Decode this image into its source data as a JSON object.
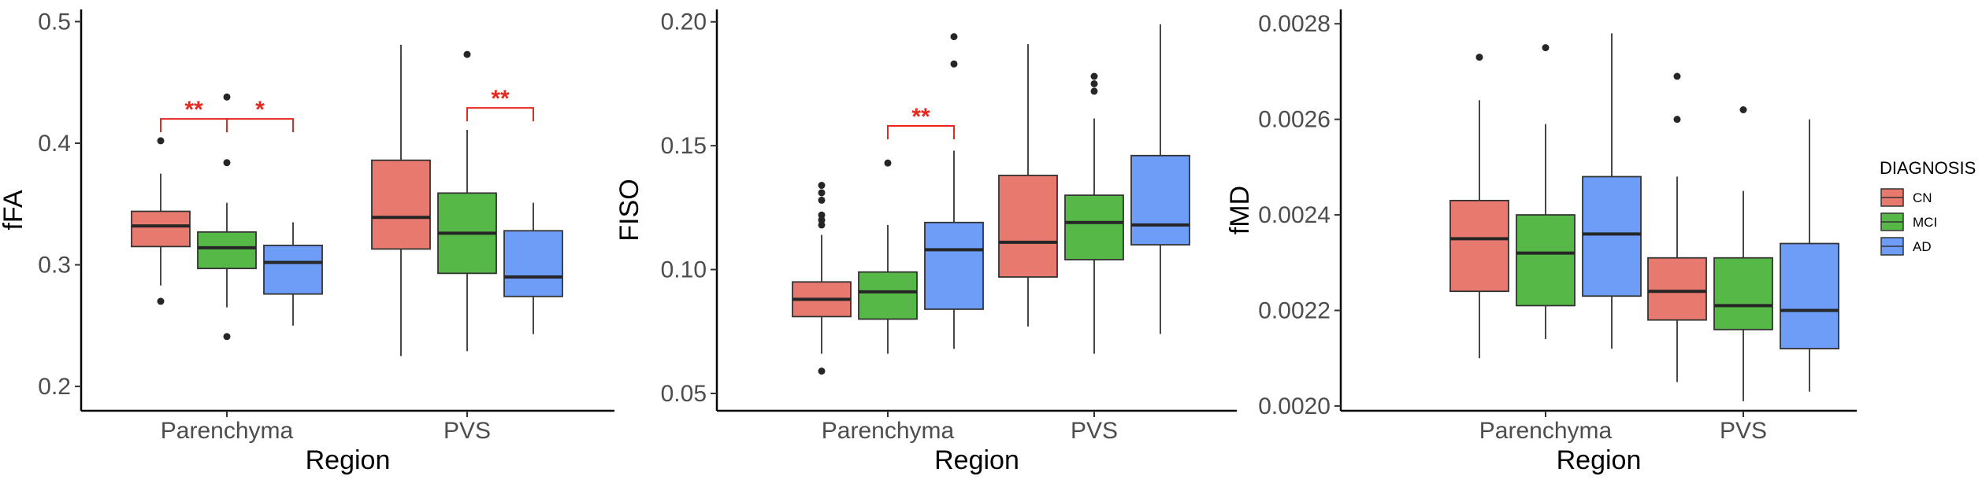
{
  "legend": {
    "title": "DIAGNOSIS",
    "items": [
      {
        "label": "CN",
        "color": "#E8796F"
      },
      {
        "label": "MCI",
        "color": "#56B947"
      },
      {
        "label": "AD",
        "color": "#6E9DF8"
      }
    ]
  },
  "significance_color": "#E8281E",
  "chart_data": [
    {
      "type": "boxplot",
      "xlabel": "Region",
      "ylabel": "fFA",
      "categories": [
        "Parenchyma",
        "PVS"
      ],
      "groups": [
        "CN",
        "MCI",
        "AD"
      ],
      "ylim": [
        0.18,
        0.51
      ],
      "yticks": [
        0.2,
        0.3,
        0.4,
        0.5
      ],
      "ytick_labels": [
        "0.2",
        "0.3",
        "0.4",
        "0.5"
      ],
      "boxes": [
        {
          "category": "Parenchyma",
          "group": "CN",
          "min": 0.283,
          "q1": 0.315,
          "median": 0.332,
          "q3": 0.344,
          "max": 0.375,
          "outliers": [
            0.402,
            0.27
          ]
        },
        {
          "category": "Parenchyma",
          "group": "MCI",
          "min": 0.265,
          "q1": 0.297,
          "median": 0.314,
          "q3": 0.327,
          "max": 0.351,
          "outliers": [
            0.438,
            0.384,
            0.241
          ]
        },
        {
          "category": "Parenchyma",
          "group": "AD",
          "min": 0.25,
          "q1": 0.276,
          "median": 0.302,
          "q3": 0.316,
          "max": 0.335,
          "outliers": []
        },
        {
          "category": "PVS",
          "group": "CN",
          "min": 0.225,
          "q1": 0.313,
          "median": 0.339,
          "q3": 0.386,
          "max": 0.481,
          "outliers": []
        },
        {
          "category": "PVS",
          "group": "MCI",
          "min": 0.229,
          "q1": 0.293,
          "median": 0.326,
          "q3": 0.359,
          "max": 0.411,
          "outliers": [
            0.473
          ]
        },
        {
          "category": "PVS",
          "group": "AD",
          "min": 0.243,
          "q1": 0.274,
          "median": 0.29,
          "q3": 0.328,
          "max": 0.351,
          "outliers": []
        }
      ],
      "significance": [
        {
          "category": "Parenchyma",
          "from": "CN",
          "to": "MCI",
          "label": "**",
          "y": 0.42
        },
        {
          "category": "Parenchyma",
          "from": "MCI",
          "to": "AD",
          "label": "*",
          "y": 0.42
        },
        {
          "category": "PVS",
          "from": "MCI",
          "to": "AD",
          "label": "**",
          "y": 0.429
        }
      ]
    },
    {
      "type": "boxplot",
      "xlabel": "Region",
      "ylabel": "FISO",
      "categories": [
        "Parenchyma",
        "PVS"
      ],
      "groups": [
        "CN",
        "MCI",
        "AD"
      ],
      "ylim": [
        0.043,
        0.205
      ],
      "yticks": [
        0.05,
        0.1,
        0.15,
        0.2
      ],
      "ytick_labels": [
        "0.05",
        "0.10",
        "0.15",
        "0.20"
      ],
      "boxes": [
        {
          "category": "Parenchyma",
          "group": "CN",
          "min": 0.066,
          "q1": 0.081,
          "median": 0.088,
          "q3": 0.095,
          "max": 0.114,
          "outliers": [
            0.134,
            0.131,
            0.128,
            0.122,
            0.12,
            0.118,
            0.059
          ]
        },
        {
          "category": "Parenchyma",
          "group": "MCI",
          "min": 0.066,
          "q1": 0.08,
          "median": 0.091,
          "q3": 0.099,
          "max": 0.118,
          "outliers": [
            0.143
          ]
        },
        {
          "category": "Parenchyma",
          "group": "AD",
          "min": 0.068,
          "q1": 0.084,
          "median": 0.108,
          "q3": 0.119,
          "max": 0.148,
          "outliers": [
            0.194,
            0.183
          ]
        },
        {
          "category": "PVS",
          "group": "CN",
          "min": 0.077,
          "q1": 0.097,
          "median": 0.111,
          "q3": 0.138,
          "max": 0.191,
          "outliers": []
        },
        {
          "category": "PVS",
          "group": "MCI",
          "min": 0.066,
          "q1": 0.104,
          "median": 0.119,
          "q3": 0.13,
          "max": 0.161,
          "outliers": [
            0.178,
            0.175,
            0.172
          ]
        },
        {
          "category": "PVS",
          "group": "AD",
          "min": 0.074,
          "q1": 0.11,
          "median": 0.118,
          "q3": 0.146,
          "max": 0.199,
          "outliers": []
        }
      ],
      "significance": [
        {
          "category": "Parenchyma",
          "from": "MCI",
          "to": "AD",
          "label": "**",
          "y": 0.158
        }
      ]
    },
    {
      "type": "boxplot",
      "xlabel": "Region",
      "ylabel": "fMD",
      "categories": [
        "Parenchyma",
        "PVS"
      ],
      "groups": [
        "CN",
        "MCI",
        "AD"
      ],
      "ylim": [
        0.00199,
        0.00283
      ],
      "yticks": [
        0.002,
        0.0022,
        0.0024,
        0.0026,
        0.0028
      ],
      "ytick_labels": [
        "0.0020",
        "0.0022",
        "0.0024",
        "0.0026",
        "0.0028"
      ],
      "boxes": [
        {
          "category": "Parenchyma",
          "group": "CN",
          "min": 0.0021,
          "q1": 0.00224,
          "median": 0.00235,
          "q3": 0.00243,
          "max": 0.00264,
          "outliers": [
            0.00273
          ]
        },
        {
          "category": "Parenchyma",
          "group": "MCI",
          "min": 0.00214,
          "q1": 0.00221,
          "median": 0.00232,
          "q3": 0.0024,
          "max": 0.00259,
          "outliers": [
            0.00275
          ]
        },
        {
          "category": "Parenchyma",
          "group": "AD",
          "min": 0.00212,
          "q1": 0.00223,
          "median": 0.00236,
          "q3": 0.00248,
          "max": 0.00278,
          "outliers": []
        },
        {
          "category": "PVS",
          "group": "CN",
          "min": 0.00205,
          "q1": 0.00218,
          "median": 0.00224,
          "q3": 0.00231,
          "max": 0.00248,
          "outliers": [
            0.00269,
            0.0026
          ]
        },
        {
          "category": "PVS",
          "group": "MCI",
          "min": 0.00201,
          "q1": 0.00216,
          "median": 0.00221,
          "q3": 0.00231,
          "max": 0.00245,
          "outliers": [
            0.00262
          ]
        },
        {
          "category": "PVS",
          "group": "AD",
          "min": 0.00203,
          "q1": 0.00212,
          "median": 0.0022,
          "q3": 0.00234,
          "max": 0.0026,
          "outliers": []
        }
      ],
      "significance": []
    }
  ]
}
